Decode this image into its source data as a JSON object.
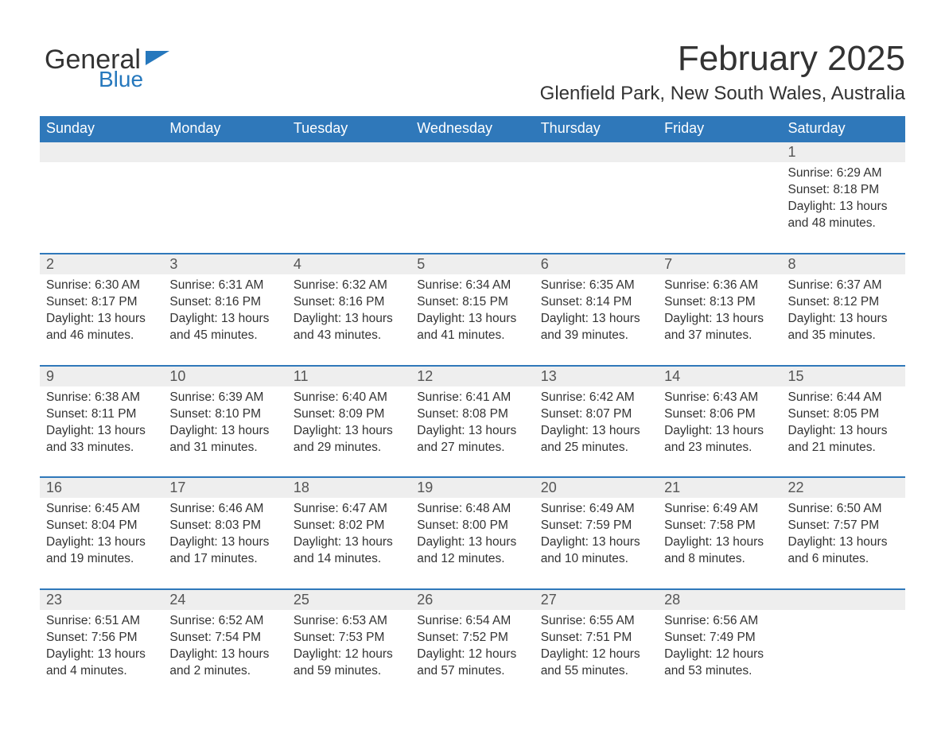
{
  "logo": {
    "word1": "General",
    "word2": "Blue"
  },
  "title": "February 2025",
  "location": "Glenfield Park, New South Wales, Australia",
  "header_color": "#2f78ba",
  "day_headers": [
    "Sunday",
    "Monday",
    "Tuesday",
    "Wednesday",
    "Thursday",
    "Friday",
    "Saturday"
  ],
  "weeks": [
    {
      "daynums": [
        "",
        "",
        "",
        "",
        "",
        "",
        "1"
      ],
      "details": [
        null,
        null,
        null,
        null,
        null,
        null,
        {
          "sunrise": "Sunrise: 6:29 AM",
          "sunset": "Sunset: 8:18 PM",
          "daylight": "Daylight: 13 hours and 48 minutes."
        }
      ]
    },
    {
      "daynums": [
        "2",
        "3",
        "4",
        "5",
        "6",
        "7",
        "8"
      ],
      "details": [
        {
          "sunrise": "Sunrise: 6:30 AM",
          "sunset": "Sunset: 8:17 PM",
          "daylight": "Daylight: 13 hours and 46 minutes."
        },
        {
          "sunrise": "Sunrise: 6:31 AM",
          "sunset": "Sunset: 8:16 PM",
          "daylight": "Daylight: 13 hours and 45 minutes."
        },
        {
          "sunrise": "Sunrise: 6:32 AM",
          "sunset": "Sunset: 8:16 PM",
          "daylight": "Daylight: 13 hours and 43 minutes."
        },
        {
          "sunrise": "Sunrise: 6:34 AM",
          "sunset": "Sunset: 8:15 PM",
          "daylight": "Daylight: 13 hours and 41 minutes."
        },
        {
          "sunrise": "Sunrise: 6:35 AM",
          "sunset": "Sunset: 8:14 PM",
          "daylight": "Daylight: 13 hours and 39 minutes."
        },
        {
          "sunrise": "Sunrise: 6:36 AM",
          "sunset": "Sunset: 8:13 PM",
          "daylight": "Daylight: 13 hours and 37 minutes."
        },
        {
          "sunrise": "Sunrise: 6:37 AM",
          "sunset": "Sunset: 8:12 PM",
          "daylight": "Daylight: 13 hours and 35 minutes."
        }
      ]
    },
    {
      "daynums": [
        "9",
        "10",
        "11",
        "12",
        "13",
        "14",
        "15"
      ],
      "details": [
        {
          "sunrise": "Sunrise: 6:38 AM",
          "sunset": "Sunset: 8:11 PM",
          "daylight": "Daylight: 13 hours and 33 minutes."
        },
        {
          "sunrise": "Sunrise: 6:39 AM",
          "sunset": "Sunset: 8:10 PM",
          "daylight": "Daylight: 13 hours and 31 minutes."
        },
        {
          "sunrise": "Sunrise: 6:40 AM",
          "sunset": "Sunset: 8:09 PM",
          "daylight": "Daylight: 13 hours and 29 minutes."
        },
        {
          "sunrise": "Sunrise: 6:41 AM",
          "sunset": "Sunset: 8:08 PM",
          "daylight": "Daylight: 13 hours and 27 minutes."
        },
        {
          "sunrise": "Sunrise: 6:42 AM",
          "sunset": "Sunset: 8:07 PM",
          "daylight": "Daylight: 13 hours and 25 minutes."
        },
        {
          "sunrise": "Sunrise: 6:43 AM",
          "sunset": "Sunset: 8:06 PM",
          "daylight": "Daylight: 13 hours and 23 minutes."
        },
        {
          "sunrise": "Sunrise: 6:44 AM",
          "sunset": "Sunset: 8:05 PM",
          "daylight": "Daylight: 13 hours and 21 minutes."
        }
      ]
    },
    {
      "daynums": [
        "16",
        "17",
        "18",
        "19",
        "20",
        "21",
        "22"
      ],
      "details": [
        {
          "sunrise": "Sunrise: 6:45 AM",
          "sunset": "Sunset: 8:04 PM",
          "daylight": "Daylight: 13 hours and 19 minutes."
        },
        {
          "sunrise": "Sunrise: 6:46 AM",
          "sunset": "Sunset: 8:03 PM",
          "daylight": "Daylight: 13 hours and 17 minutes."
        },
        {
          "sunrise": "Sunrise: 6:47 AM",
          "sunset": "Sunset: 8:02 PM",
          "daylight": "Daylight: 13 hours and 14 minutes."
        },
        {
          "sunrise": "Sunrise: 6:48 AM",
          "sunset": "Sunset: 8:00 PM",
          "daylight": "Daylight: 13 hours and 12 minutes."
        },
        {
          "sunrise": "Sunrise: 6:49 AM",
          "sunset": "Sunset: 7:59 PM",
          "daylight": "Daylight: 13 hours and 10 minutes."
        },
        {
          "sunrise": "Sunrise: 6:49 AM",
          "sunset": "Sunset: 7:58 PM",
          "daylight": "Daylight: 13 hours and 8 minutes."
        },
        {
          "sunrise": "Sunrise: 6:50 AM",
          "sunset": "Sunset: 7:57 PM",
          "daylight": "Daylight: 13 hours and 6 minutes."
        }
      ]
    },
    {
      "daynums": [
        "23",
        "24",
        "25",
        "26",
        "27",
        "28",
        ""
      ],
      "details": [
        {
          "sunrise": "Sunrise: 6:51 AM",
          "sunset": "Sunset: 7:56 PM",
          "daylight": "Daylight: 13 hours and 4 minutes."
        },
        {
          "sunrise": "Sunrise: 6:52 AM",
          "sunset": "Sunset: 7:54 PM",
          "daylight": "Daylight: 13 hours and 2 minutes."
        },
        {
          "sunrise": "Sunrise: 6:53 AM",
          "sunset": "Sunset: 7:53 PM",
          "daylight": "Daylight: 12 hours and 59 minutes."
        },
        {
          "sunrise": "Sunrise: 6:54 AM",
          "sunset": "Sunset: 7:52 PM",
          "daylight": "Daylight: 12 hours and 57 minutes."
        },
        {
          "sunrise": "Sunrise: 6:55 AM",
          "sunset": "Sunset: 7:51 PM",
          "daylight": "Daylight: 12 hours and 55 minutes."
        },
        {
          "sunrise": "Sunrise: 6:56 AM",
          "sunset": "Sunset: 7:49 PM",
          "daylight": "Daylight: 12 hours and 53 minutes."
        },
        null
      ]
    }
  ]
}
